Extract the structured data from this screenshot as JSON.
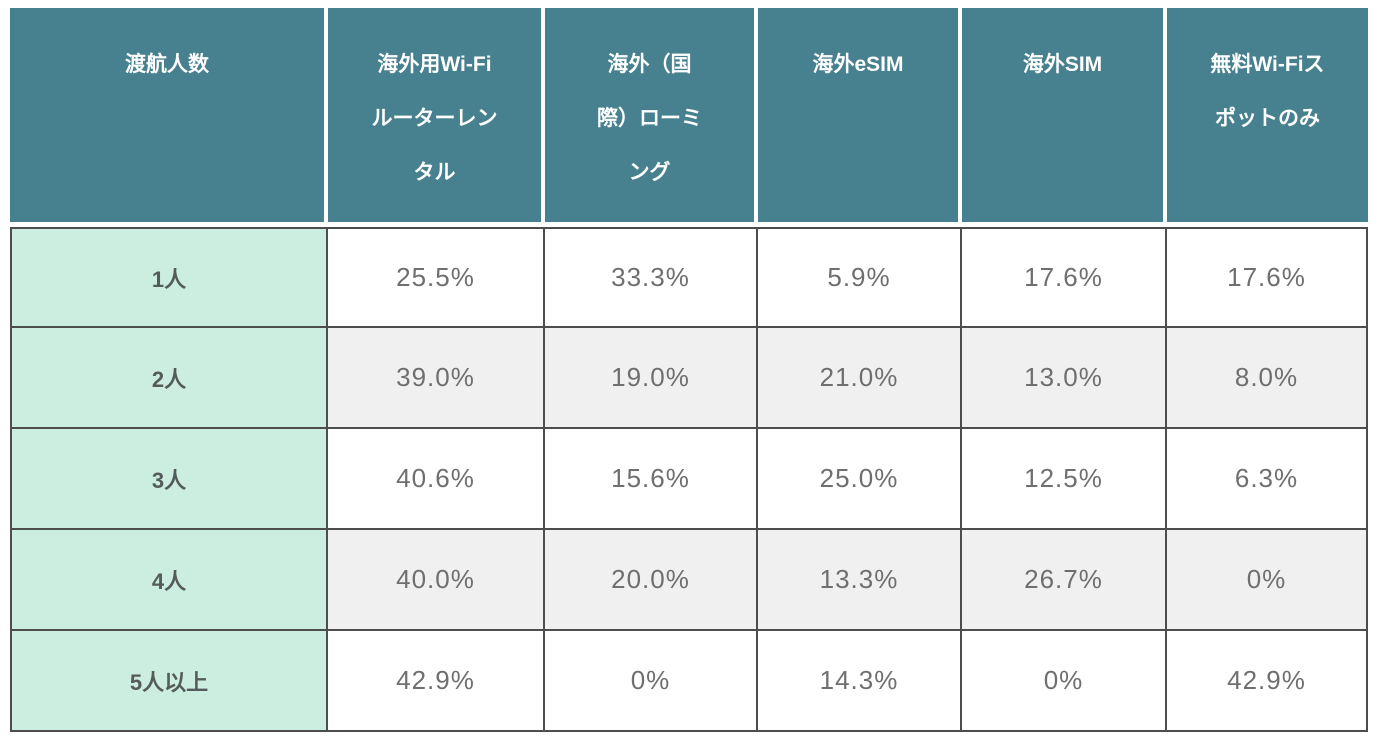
{
  "colors": {
    "header_bg": "#47818F",
    "header_text": "#FFFFFF",
    "label_column_bg": "#CBEEE0",
    "alt_row_bg": "#F0F0F0",
    "border": "#4D4D4D",
    "value_text": "#6F6F6F",
    "label_text": "#555A5B"
  },
  "chart_data": {
    "type": "table",
    "title": "",
    "columns": [
      "渡航人数",
      "海外用Wi-Fiルーターレンタル",
      "海外（国際）ローミング",
      "海外eSIM",
      "海外SIM",
      "無料Wi-Fiスポットのみ"
    ],
    "header_lines": [
      "渡航人数",
      "海外用Wi-Fi\nルーターレン\nタル",
      "海外（国\n際）ローミ\nング",
      "海外eSIM",
      "海外SIM",
      "無料Wi-Fiス\nポットのみ"
    ],
    "rows": [
      {
        "label": "1人",
        "values": [
          "25.5%",
          "33.3%",
          "5.9%",
          "17.6%",
          "17.6%"
        ]
      },
      {
        "label": "2人",
        "values": [
          "39.0%",
          "19.0%",
          "21.0%",
          "13.0%",
          "8.0%"
        ]
      },
      {
        "label": "3人",
        "values": [
          "40.6%",
          "15.6%",
          "25.0%",
          "12.5%",
          "6.3%"
        ]
      },
      {
        "label": "4人",
        "values": [
          "40.0%",
          "20.0%",
          "13.3%",
          "26.7%",
          "0%"
        ]
      },
      {
        "label": "5人以上",
        "values": [
          "42.9%",
          "0%",
          "14.3%",
          "0%",
          "42.9%"
        ]
      }
    ]
  }
}
